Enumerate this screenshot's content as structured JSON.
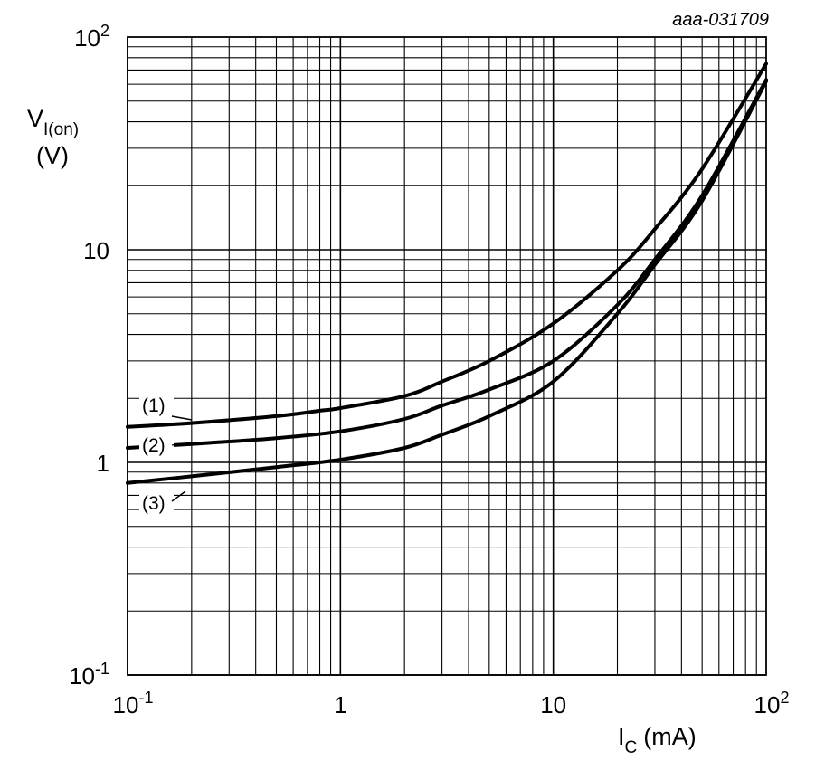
{
  "chart_data": {
    "type": "line",
    "scale": {
      "x": "log",
      "y": "log"
    },
    "reference": "aaa-031709",
    "xlabel": {
      "main": "I",
      "sub": "C",
      "unit": "(mA)"
    },
    "ylabel": {
      "main": "V",
      "sub": "I(on)",
      "unit": "(V)"
    },
    "xlim": [
      0.1,
      100
    ],
    "ylim": [
      0.1,
      100
    ],
    "grid": true,
    "x_ticks": [
      {
        "value": 0.1,
        "base": "10",
        "exp": "-1"
      },
      {
        "value": 1,
        "base": "1",
        "exp": ""
      },
      {
        "value": 10,
        "base": "10",
        "exp": ""
      },
      {
        "value": 100,
        "base": "10",
        "exp": "2"
      }
    ],
    "y_ticks": [
      {
        "value": 0.1,
        "base": "10",
        "exp": "-1"
      },
      {
        "value": 1,
        "base": "1",
        "exp": ""
      },
      {
        "value": 10,
        "base": "10",
        "exp": ""
      },
      {
        "value": 100,
        "base": "10",
        "exp": "2"
      }
    ],
    "series": [
      {
        "name": "(1)",
        "x": [
          0.1,
          0.2,
          0.5,
          0.8,
          1,
          2,
          3,
          5,
          10,
          20,
          30,
          50,
          100
        ],
        "y": [
          1.47,
          1.53,
          1.65,
          1.75,
          1.8,
          2.05,
          2.4,
          3.0,
          4.5,
          8.0,
          12.5,
          24,
          75
        ]
      },
      {
        "name": "(2)",
        "x": [
          0.1,
          0.2,
          0.5,
          1,
          2,
          3,
          5,
          10,
          20,
          30,
          50,
          100
        ],
        "y": [
          1.17,
          1.22,
          1.3,
          1.4,
          1.6,
          1.85,
          2.2,
          3.0,
          5.5,
          9.0,
          18,
          63
        ]
      },
      {
        "name": "(3)",
        "x": [
          0.1,
          0.2,
          0.5,
          1,
          2,
          3,
          5,
          10,
          20,
          30,
          50,
          100
        ],
        "y": [
          0.8,
          0.86,
          0.95,
          1.03,
          1.17,
          1.35,
          1.65,
          2.4,
          5.0,
          8.5,
          17,
          62
        ]
      }
    ]
  }
}
